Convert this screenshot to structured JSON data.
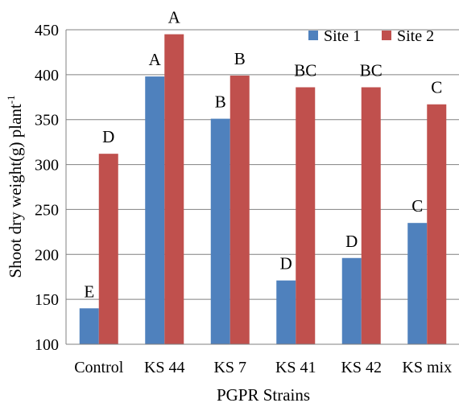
{
  "chart_data": {
    "type": "bar",
    "title": "",
    "xlabel": "PGPR Strains",
    "ylabel": "Shoot dry weight(g) plant",
    "ylabel_superscript": "-1",
    "ylim": [
      100,
      450
    ],
    "yticks": [
      "100",
      "150",
      "200",
      "250",
      "300",
      "350",
      "400",
      "450"
    ],
    "grid": "horizontal",
    "legend_position": "top-right",
    "categories": [
      "Control",
      "KS 44",
      "KS 7",
      "KS 41",
      "KS 42",
      "KS mix"
    ],
    "series": [
      {
        "name": "Site 1",
        "color": "#4F81BD",
        "values": [
          140,
          398,
          351,
          171,
          196,
          235
        ],
        "letters": [
          "E",
          "A",
          "B",
          "D",
          "D",
          "C"
        ]
      },
      {
        "name": "Site 2",
        "color": "#C0504D",
        "values": [
          312,
          445,
          399,
          386,
          386,
          367
        ],
        "letters": [
          "D",
          "A",
          "B",
          "BC",
          "BC",
          "C"
        ]
      }
    ]
  }
}
